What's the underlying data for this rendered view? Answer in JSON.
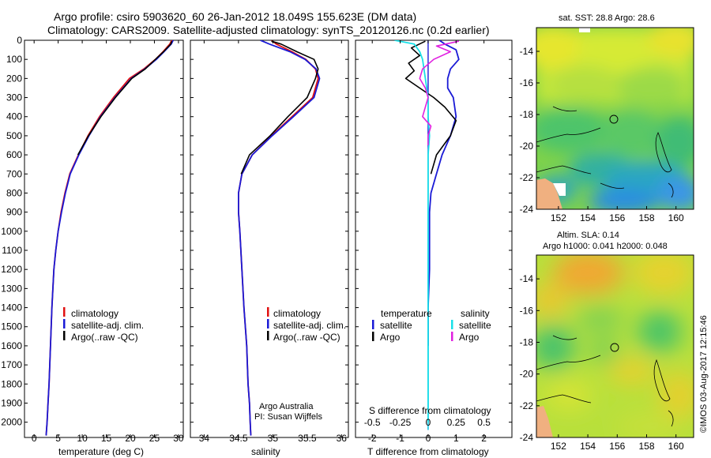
{
  "header": {
    "title_line1": "Argo profile: csiro 5903620_60 26-Jan-2012 18.049S 155.623E (DM data)",
    "title_line2": "Climatology: CARS2009. Satellite-adjusted climatology: synTS_20120126.nc (0.2d earlier)"
  },
  "colors": {
    "climatology": "#e01010",
    "satellite": "#1a1ad6",
    "argo": "#000000",
    "sal_satellite": "#18e0e8",
    "sal_argo": "#e020e0"
  },
  "footer": {
    "credit_line1": "Argo Australia",
    "credit_line2": "PI: Susan Wijffels",
    "timestamp": "©IMOS 03-Aug-2017 12:15:46"
  },
  "chart_data": [
    {
      "id": "temperature",
      "type": "line",
      "xlabel": "temperature (deg C)",
      "ylabel": "",
      "xlim": [
        -2,
        31
      ],
      "ylim": [
        2080,
        0
      ],
      "xticks": [
        0,
        5,
        10,
        15,
        20,
        25,
        30
      ],
      "yticks": [
        0,
        100,
        200,
        300,
        400,
        500,
        600,
        700,
        800,
        900,
        1000,
        1100,
        1200,
        1300,
        1400,
        1500,
        1600,
        1700,
        1800,
        1900,
        2000
      ],
      "legend": [
        "climatology",
        "satellite-adj. clim.",
        "Argo(..raw -QC)"
      ],
      "series": [
        {
          "name": "climatology",
          "color": "climatology",
          "x": [
            28.6,
            28.2,
            26.8,
            25.2,
            22.8,
            19.8,
            16.5,
            13.6,
            11.2,
            9.2,
            7.4,
            6.4,
            5.6,
            5.0,
            4.5,
            4.1,
            3.7,
            3.4,
            3.1,
            2.9,
            2.7,
            2.5
          ],
          "y": [
            0,
            20,
            60,
            100,
            150,
            200,
            300,
            400,
            500,
            600,
            700,
            800,
            900,
            1000,
            1100,
            1200,
            1400,
            1600,
            1800,
            1900,
            2000,
            2070
          ]
        },
        {
          "name": "satellite-adj. clim.",
          "color": "satellite",
          "x": [
            28.9,
            28.5,
            27.0,
            25.4,
            23.0,
            20.2,
            16.8,
            13.8,
            11.4,
            9.3,
            7.5,
            6.5,
            5.7,
            5.0,
            4.5,
            4.1,
            3.7,
            3.4,
            3.1,
            2.9,
            2.7,
            2.5
          ],
          "y": [
            0,
            20,
            60,
            100,
            150,
            200,
            300,
            400,
            500,
            600,
            700,
            800,
            900,
            1000,
            1100,
            1200,
            1400,
            1600,
            1800,
            1900,
            2000,
            2070
          ]
        },
        {
          "name": "Argo(..raw -QC)",
          "color": "argo",
          "x": [
            28.6,
            28.4,
            26.9,
            25.2,
            23.1,
            20.3,
            16.9,
            13.9,
            11.3,
            9.1
          ],
          "y": [
            5,
            20,
            60,
            100,
            150,
            200,
            300,
            400,
            500,
            600
          ]
        }
      ]
    },
    {
      "id": "salinity",
      "type": "line",
      "xlabel": "salinity",
      "ylabel": "",
      "xlim": [
        33.8,
        36.1
      ],
      "ylim": [
        2080,
        0
      ],
      "xticks": [
        34,
        34.5,
        35,
        35.5,
        36
      ],
      "legend": [
        "climatology",
        "satellite-adj. clim.",
        "Argo(..raw -QC)"
      ],
      "series": [
        {
          "name": "climatology",
          "color": "climatology",
          "x": [
            34.98,
            35.05,
            35.28,
            35.48,
            35.62,
            35.66,
            35.58,
            35.28,
            34.98,
            34.7,
            34.55,
            34.5,
            34.5,
            34.52,
            34.55,
            34.58,
            34.62,
            34.64,
            34.66,
            34.67,
            34.68
          ],
          "y": [
            0,
            20,
            60,
            100,
            150,
            200,
            300,
            400,
            500,
            600,
            700,
            800,
            900,
            1000,
            1200,
            1400,
            1600,
            1800,
            1900,
            2000,
            2070
          ]
        },
        {
          "name": "satellite-adj. clim.",
          "color": "satellite",
          "x": [
            34.82,
            34.95,
            35.25,
            35.47,
            35.63,
            35.68,
            35.6,
            35.3,
            34.99,
            34.7,
            34.55,
            34.5,
            34.5,
            34.52,
            34.55,
            34.58,
            34.62,
            34.64,
            34.66,
            34.67,
            34.68
          ],
          "y": [
            0,
            20,
            60,
            100,
            150,
            200,
            300,
            400,
            500,
            600,
            700,
            800,
            900,
            1000,
            1200,
            1400,
            1600,
            1800,
            1900,
            2000,
            2070
          ]
        },
        {
          "name": "Argo(..raw -QC)",
          "color": "argo",
          "x": [
            34.98,
            35.12,
            35.35,
            35.6,
            35.66,
            35.62,
            35.5,
            35.22,
            34.96,
            34.66,
            34.54
          ],
          "y": [
            5,
            20,
            60,
            100,
            150,
            200,
            300,
            400,
            500,
            600,
            700
          ]
        }
      ]
    },
    {
      "id": "difference",
      "type": "line",
      "xlabel": "T difference from climatology",
      "title": "S difference from climatology",
      "xlim": [
        -2.6,
        3.0
      ],
      "ylim": [
        2080,
        0
      ],
      "xticks_T": [
        -2,
        -1,
        0,
        1,
        2
      ],
      "xticks_S_labels": [
        "-0.5",
        "-0.25",
        "0",
        "0.25",
        "0.5"
      ],
      "xticks_S_pos": [
        -2,
        -1,
        0,
        1,
        2
      ],
      "legend_groups": [
        {
          "title": "temperature",
          "entries": [
            "satellite",
            "Argo"
          ]
        },
        {
          "title": "salinity",
          "entries": [
            "satellite",
            "Argo"
          ]
        }
      ],
      "series": [
        {
          "name": "temperature satellite",
          "color": "satellite",
          "x": [
            0.4,
            0.6,
            1.0,
            1.1,
            0.8,
            0.7,
            0.7,
            0.9,
            1.0,
            0.8,
            0.5,
            0.3,
            0.1,
            0.05,
            0.05,
            0.05,
            0.0,
            0.0
          ],
          "y": [
            0,
            20,
            50,
            100,
            150,
            200,
            250,
            300,
            400,
            500,
            600,
            700,
            800,
            900,
            1000,
            1200,
            1400,
            1600
          ]
        },
        {
          "name": "temperature Argo",
          "color": "argo",
          "x": [
            -0.1,
            -0.6,
            -0.3,
            -0.7,
            -0.5,
            -0.8,
            -0.3,
            0.2,
            0.6,
            1.0,
            0.8,
            0.3,
            0.1
          ],
          "y": [
            5,
            40,
            80,
            120,
            160,
            200,
            250,
            300,
            350,
            420,
            500,
            600,
            700
          ]
        },
        {
          "name": "salinity satellite",
          "color": "sal_satellite",
          "x": [
            -1.2,
            -0.5,
            -0.3,
            -0.2,
            -0.1,
            0.0,
            0.0,
            0.05,
            0.0,
            0.0,
            0.0,
            0.0,
            0.0,
            0.0
          ],
          "y": [
            0,
            20,
            60,
            100,
            200,
            300,
            400,
            500,
            600,
            800,
            1000,
            1400,
            1800,
            2000
          ]
        },
        {
          "name": "salinity Argo",
          "color": "sal_argo",
          "x": [
            1.1,
            0.3,
            0.8,
            0.2,
            -0.2,
            -0.3,
            -0.1,
            0.0,
            -0.2,
            0.1,
            0.0,
            0.0
          ],
          "y": [
            5,
            30,
            60,
            100,
            150,
            200,
            250,
            300,
            400,
            450,
            500,
            550
          ]
        }
      ]
    },
    {
      "id": "sst_map",
      "type": "heatmap",
      "title": "sat. SST: 28.8 Argo: 28.6",
      "xlim": [
        150.5,
        161.2
      ],
      "ylim": [
        -24,
        -12.5
      ],
      "xticks": [
        152,
        154,
        156,
        158,
        160
      ],
      "yticks": [
        -14,
        -16,
        -18,
        -20,
        -22,
        -24
      ],
      "argo_position": {
        "lon": 155.623,
        "lat": -18.049
      }
    },
    {
      "id": "sla_map",
      "type": "heatmap",
      "title_line1": "Altim. SLA: 0.14",
      "title_line2": "Argo h1000: 0.041 h2000: 0.048",
      "xlim": [
        150.5,
        161.2
      ],
      "ylim": [
        -24,
        -12.5
      ],
      "xticks": [
        152,
        154,
        156,
        158,
        160
      ],
      "yticks": [
        -14,
        -16,
        -18,
        -20,
        -22,
        -24
      ],
      "argo_position": {
        "lon": 155.623,
        "lat": -18.049
      }
    }
  ]
}
